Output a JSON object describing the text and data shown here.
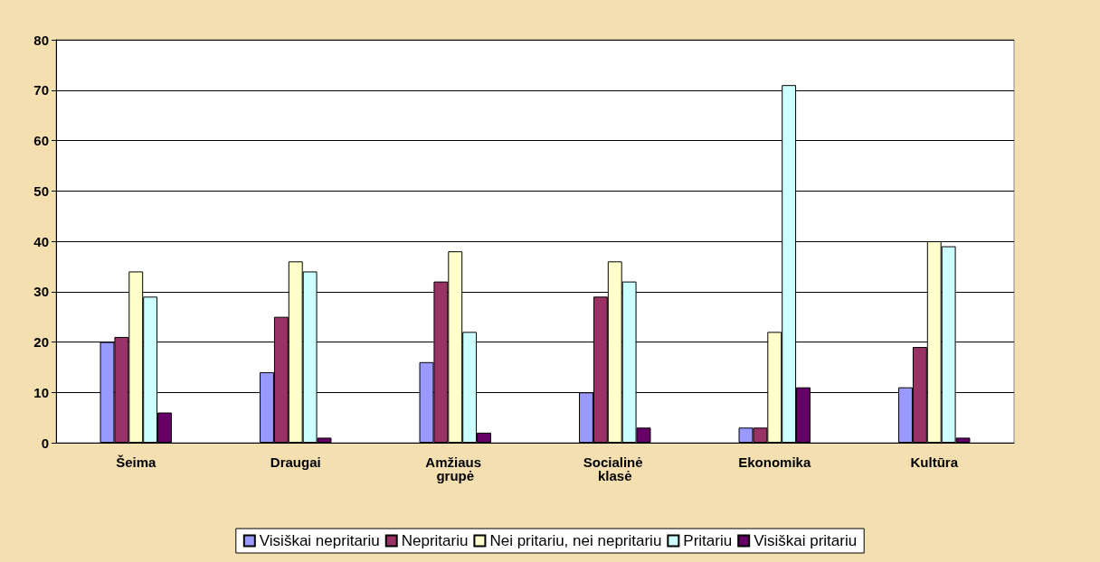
{
  "chart_data": {
    "type": "bar",
    "categories": [
      "Šeima",
      "Draugai",
      "Amžiaus grupė",
      "Socialinė klasė",
      "Ekonomika",
      "Kultūra"
    ],
    "series": [
      {
        "name": "Visiškai nepritariu",
        "color": "#9999ff",
        "values": [
          20,
          14,
          16,
          10,
          3,
          11
        ]
      },
      {
        "name": "Nepritariu",
        "color": "#993366",
        "values": [
          21,
          25,
          32,
          29,
          3,
          19
        ]
      },
      {
        "name": "Nei pritariu, nei nepritariu",
        "color": "#ffffcc",
        "values": [
          34,
          36,
          38,
          36,
          22,
          40
        ]
      },
      {
        "name": "Pritariu",
        "color": "#ccffff",
        "values": [
          29,
          34,
          22,
          32,
          71,
          39
        ]
      },
      {
        "name": "Visiškai pritariu",
        "color": "#660066",
        "values": [
          6,
          1,
          2,
          3,
          11,
          1
        ]
      }
    ],
    "ylim": [
      0,
      80
    ],
    "yticks": [
      0,
      10,
      20,
      30,
      40,
      50,
      60,
      70,
      80
    ],
    "grid": "y",
    "legend": "bottom"
  }
}
